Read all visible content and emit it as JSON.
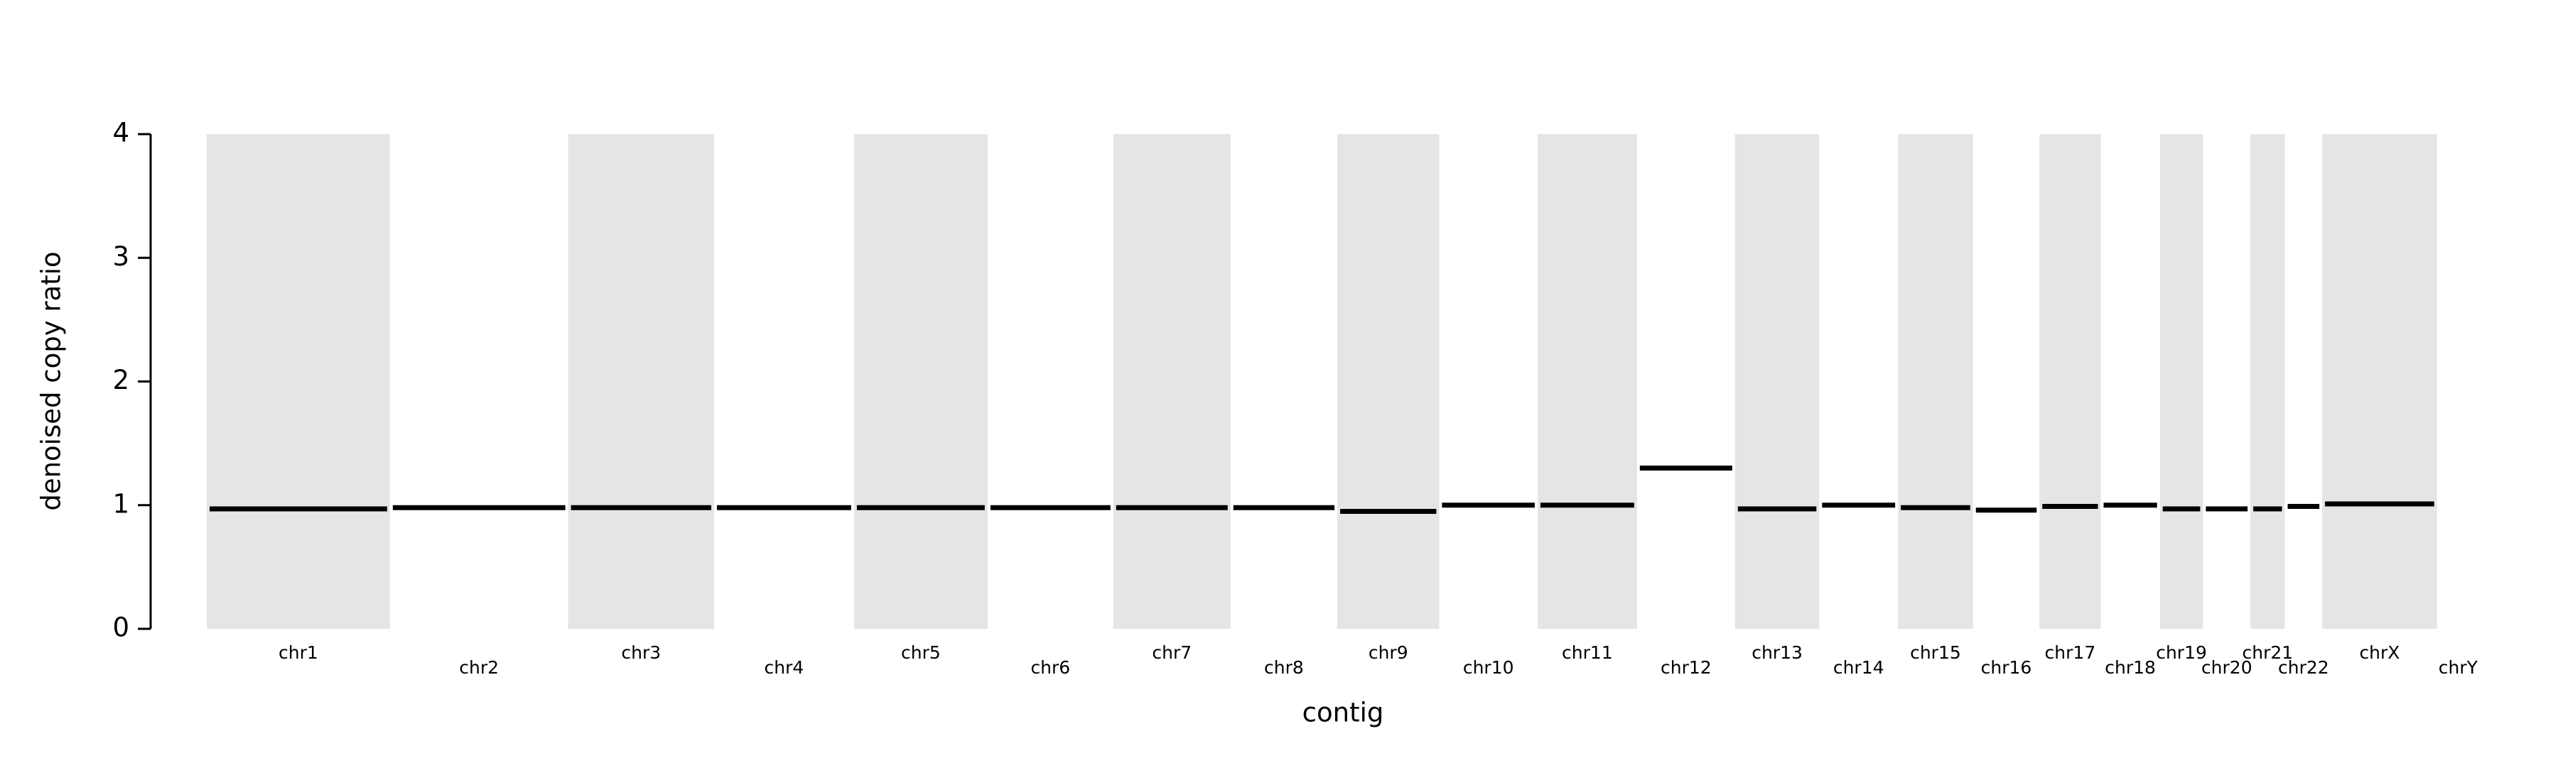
{
  "chart_data": {
    "type": "segments",
    "ylabel": "denoised copy ratio",
    "xlabel": "contig",
    "ylim": [
      0,
      4
    ],
    "yticks": [
      0,
      1,
      2,
      3,
      4
    ],
    "categories": [
      "chr1",
      "chr2",
      "chr3",
      "chr4",
      "chr5",
      "chr6",
      "chr7",
      "chr8",
      "chr9",
      "chr10",
      "chr11",
      "chr12",
      "chr13",
      "chr14",
      "chr15",
      "chr16",
      "chr17",
      "chr18",
      "chr19",
      "chr20",
      "chr21",
      "chr22",
      "chrX",
      "chrY"
    ],
    "contig_lengths": [
      248.96,
      242.19,
      198.3,
      190.21,
      181.54,
      170.81,
      159.35,
      145.14,
      138.39,
      133.8,
      135.09,
      133.28,
      114.36,
      107.04,
      101.99,
      90.34,
      83.26,
      80.37,
      58.62,
      64.44,
      46.71,
      50.82,
      156.04,
      57.23
    ],
    "values": [
      0.97,
      0.98,
      0.98,
      0.98,
      0.98,
      0.98,
      0.98,
      0.98,
      0.95,
      1.0,
      1.0,
      1.3,
      0.97,
      1.0,
      0.98,
      0.96,
      0.99,
      1.0,
      0.97,
      0.97,
      0.97,
      0.99,
      1.01,
      null
    ],
    "band_color": "#e5e5e5",
    "segment_color": "#000000"
  }
}
